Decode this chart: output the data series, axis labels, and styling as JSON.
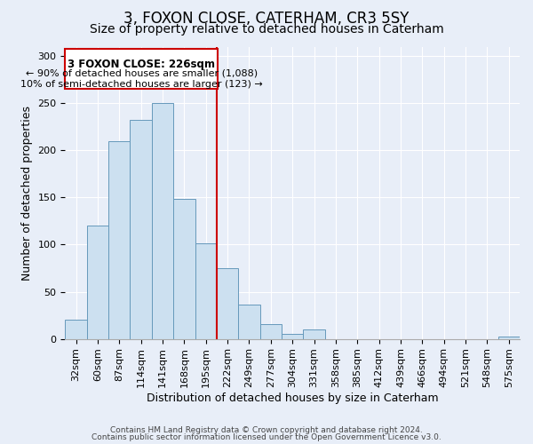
{
  "title": "3, FOXON CLOSE, CATERHAM, CR3 5SY",
  "subtitle": "Size of property relative to detached houses in Caterham",
  "xlabel": "Distribution of detached houses by size in Caterham",
  "ylabel": "Number of detached properties",
  "bin_labels": [
    "32sqm",
    "60sqm",
    "87sqm",
    "114sqm",
    "141sqm",
    "168sqm",
    "195sqm",
    "222sqm",
    "249sqm",
    "277sqm",
    "304sqm",
    "331sqm",
    "358sqm",
    "385sqm",
    "412sqm",
    "439sqm",
    "466sqm",
    "494sqm",
    "521sqm",
    "548sqm",
    "575sqm"
  ],
  "bar_heights": [
    20,
    120,
    210,
    232,
    250,
    148,
    101,
    75,
    36,
    16,
    5,
    10,
    0,
    0,
    0,
    0,
    0,
    0,
    0,
    0,
    2
  ],
  "bar_color": "#cce0f0",
  "bar_edge_color": "#6699bb",
  "marker_line_color": "#cc0000",
  "annotation_line1": "3 FOXON CLOSE: 226sqm",
  "annotation_line2": "← 90% of detached houses are smaller (1,088)",
  "annotation_line3": "10% of semi-detached houses are larger (123) →",
  "annotation_box_edge": "#cc0000",
  "ylim": [
    0,
    310
  ],
  "yticks": [
    0,
    50,
    100,
    150,
    200,
    250,
    300
  ],
  "footer1": "Contains HM Land Registry data © Crown copyright and database right 2024.",
  "footer2": "Contains public sector information licensed under the Open Government Licence v3.0.",
  "background_color": "#e8eef8",
  "grid_color": "#ffffff",
  "title_fontsize": 12,
  "subtitle_fontsize": 10,
  "axis_label_fontsize": 9,
  "tick_fontsize": 8,
  "footer_fontsize": 6.5
}
